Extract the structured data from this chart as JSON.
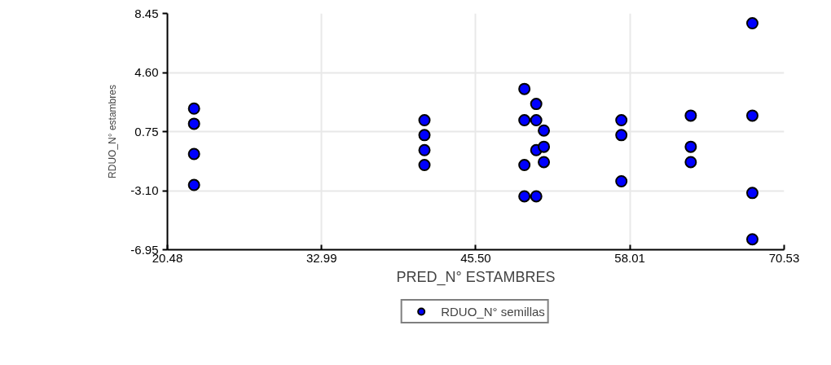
{
  "chart_data": {
    "type": "scatter",
    "xlabel": "PRED_N° ESTAMBRES",
    "ylabel": "RDUO_N° estambres",
    "xlim": [
      20.48,
      70.53
    ],
    "xticks": [
      20.48,
      32.99,
      {
        "value": 45.5,
        "label": "45.50"
      },
      58.01,
      70.53
    ],
    "ylim": [
      -6.95,
      8.45
    ],
    "yticks": [
      -6.95,
      {
        "value": -3.1,
        "label": "-3.10"
      },
      0.75,
      {
        "value": 4.6,
        "label": "4.60"
      },
      8.45
    ],
    "grid": true,
    "legend": "bottom",
    "marker": "circle",
    "series": [
      {
        "name": "RDUO_N° semillas",
        "color": "#0000ff",
        "x": [
          22.64,
          22.64,
          22.64,
          22.64,
          41.34,
          41.34,
          41.34,
          41.34,
          49.45,
          49.45,
          49.45,
          49.45,
          50.41,
          50.41,
          50.41,
          50.41,
          51.03,
          51.03,
          51.03,
          57.32,
          57.32,
          57.32,
          62.95,
          62.95,
          62.95,
          67.95,
          67.95,
          67.95,
          67.95
        ],
        "values": [
          2.25,
          1.26,
          -0.71,
          -2.73,
          1.49,
          0.52,
          -0.46,
          -1.43,
          3.53,
          1.49,
          -1.43,
          -3.47,
          2.55,
          1.49,
          -0.46,
          -3.47,
          0.82,
          -0.24,
          -1.24,
          1.49,
          0.52,
          -2.49,
          1.79,
          -0.24,
          -1.24,
          7.81,
          1.79,
          -3.25,
          -6.27
        ]
      }
    ]
  }
}
